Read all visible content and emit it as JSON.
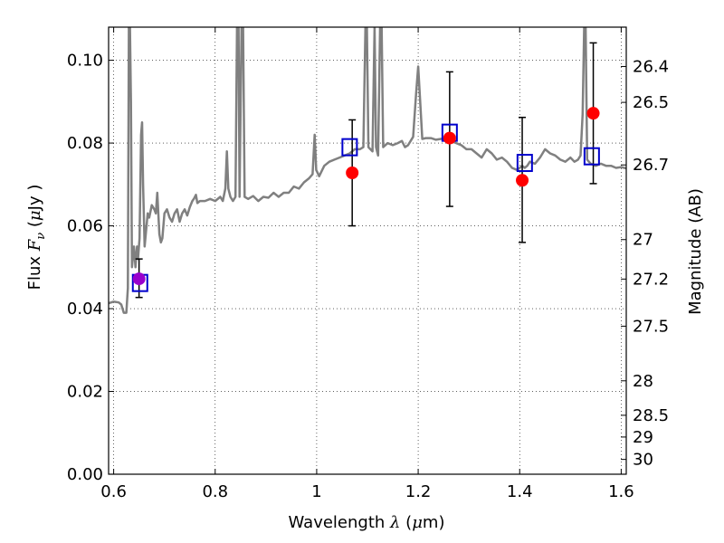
{
  "chart_data": {
    "type": "scatter",
    "xlabel_text": "Wavelength",
    "xlabel_symbol": "λ",
    "xlabel_unit_open": " (",
    "xlabel_unit_mu": "μ",
    "xlabel_unit_rest": "m)",
    "ylabel_text": "Flux",
    "ylabel_symbol": "F",
    "ylabel_subscript": "ν",
    "ylabel_unit_open": " (",
    "ylabel_unit_mu": "μ",
    "ylabel_unit_rest": "Jy )",
    "y2label": "Magnitude (AB)",
    "xlim": [
      0.59,
      1.61
    ],
    "ylim": [
      0.0,
      0.108
    ],
    "x_ticks": [
      0.6,
      0.8,
      1.0,
      1.2,
      1.4,
      1.6
    ],
    "x_tick_labels": [
      "0.6",
      "0.8",
      "1",
      "1.2",
      "1.4",
      "1.6"
    ],
    "y_ticks": [
      0.0,
      0.02,
      0.04,
      0.06,
      0.08,
      0.1
    ],
    "y_tick_labels": [
      "0.00",
      "0.02",
      "0.04",
      "0.06",
      "0.08",
      "0.10"
    ],
    "y2_ticks": [
      26.4,
      26.5,
      26.7,
      27.0,
      27.2,
      27.5,
      28.0,
      28.5,
      29.0,
      30.0
    ],
    "y2_tick_labels": [
      "26.4",
      "26.5",
      "26.7",
      "27",
      "27.2",
      "27.5",
      "28",
      "28.5",
      "29",
      "30"
    ],
    "grid": true,
    "colors": {
      "model_spectrum": "#808080",
      "model_photometry": "#0000cc",
      "observed": "#ff0000",
      "highlight": "#9900cc",
      "errorbar": "#000000"
    },
    "series": [
      {
        "kind": "line",
        "points": [
          [
            0.59,
            0.0413
          ],
          [
            0.6,
            0.0417
          ],
          [
            0.61,
            0.0415
          ],
          [
            0.615,
            0.041
          ],
          [
            0.62,
            0.039
          ],
          [
            0.625,
            0.039
          ],
          [
            0.628,
            0.045
          ],
          [
            0.63,
            0.108
          ],
          [
            0.632,
            0.108
          ],
          [
            0.634,
            0.09
          ],
          [
            0.636,
            0.05
          ],
          [
            0.64,
            0.055
          ],
          [
            0.643,
            0.05
          ],
          [
            0.646,
            0.055
          ],
          [
            0.648,
            0.052
          ],
          [
            0.651,
            0.057
          ],
          [
            0.654,
            0.082
          ],
          [
            0.656,
            0.085
          ],
          [
            0.658,
            0.07
          ],
          [
            0.661,
            0.055
          ],
          [
            0.664,
            0.059
          ],
          [
            0.667,
            0.063
          ],
          [
            0.67,
            0.062
          ],
          [
            0.675,
            0.065
          ],
          [
            0.68,
            0.064
          ],
          [
            0.683,
            0.063
          ],
          [
            0.686,
            0.068
          ],
          [
            0.69,
            0.058
          ],
          [
            0.693,
            0.056
          ],
          [
            0.696,
            0.057
          ],
          [
            0.7,
            0.063
          ],
          [
            0.705,
            0.064
          ],
          [
            0.71,
            0.062
          ],
          [
            0.715,
            0.061
          ],
          [
            0.72,
            0.063
          ],
          [
            0.725,
            0.064
          ],
          [
            0.73,
            0.061
          ],
          [
            0.735,
            0.063
          ],
          [
            0.74,
            0.064
          ],
          [
            0.745,
            0.0625
          ],
          [
            0.75,
            0.0645
          ],
          [
            0.755,
            0.066
          ],
          [
            0.758,
            0.0665
          ],
          [
            0.762,
            0.0675
          ],
          [
            0.765,
            0.0655
          ],
          [
            0.77,
            0.066
          ],
          [
            0.78,
            0.066
          ],
          [
            0.79,
            0.0665
          ],
          [
            0.8,
            0.066
          ],
          [
            0.81,
            0.067
          ],
          [
            0.815,
            0.066
          ],
          [
            0.82,
            0.069
          ],
          [
            0.823,
            0.078
          ],
          [
            0.826,
            0.069
          ],
          [
            0.83,
            0.067
          ],
          [
            0.835,
            0.066
          ],
          [
            0.84,
            0.067
          ],
          [
            0.843,
            0.108
          ],
          [
            0.846,
            0.108
          ],
          [
            0.848,
            0.067
          ],
          [
            0.852,
            0.108
          ],
          [
            0.855,
            0.108
          ],
          [
            0.858,
            0.067
          ],
          [
            0.865,
            0.0665
          ],
          [
            0.875,
            0.0672
          ],
          [
            0.885,
            0.066
          ],
          [
            0.895,
            0.067
          ],
          [
            0.905,
            0.0668
          ],
          [
            0.915,
            0.068
          ],
          [
            0.925,
            0.067
          ],
          [
            0.935,
            0.068
          ],
          [
            0.945,
            0.068
          ],
          [
            0.955,
            0.0695
          ],
          [
            0.965,
            0.069
          ],
          [
            0.975,
            0.0705
          ],
          [
            0.985,
            0.0715
          ],
          [
            0.992,
            0.0725
          ],
          [
            0.996,
            0.082
          ],
          [
            0.999,
            0.0735
          ],
          [
            1.005,
            0.072
          ],
          [
            1.015,
            0.0745
          ],
          [
            1.025,
            0.0755
          ],
          [
            1.035,
            0.076
          ],
          [
            1.045,
            0.0765
          ],
          [
            1.055,
            0.077
          ],
          [
            1.065,
            0.0775
          ],
          [
            1.075,
            0.0785
          ],
          [
            1.085,
            0.0785
          ],
          [
            1.092,
            0.079
          ],
          [
            1.096,
            0.108
          ],
          [
            1.099,
            0.108
          ],
          [
            1.102,
            0.079
          ],
          [
            1.11,
            0.078
          ],
          [
            1.114,
            0.108
          ],
          [
            1.117,
            0.079
          ],
          [
            1.121,
            0.077
          ],
          [
            1.125,
            0.108
          ],
          [
            1.128,
            0.108
          ],
          [
            1.131,
            0.079
          ],
          [
            1.14,
            0.08
          ],
          [
            1.15,
            0.0795
          ],
          [
            1.16,
            0.08
          ],
          [
            1.168,
            0.0805
          ],
          [
            1.174,
            0.079
          ],
          [
            1.18,
            0.0795
          ],
          [
            1.185,
            0.0805
          ],
          [
            1.19,
            0.0815
          ],
          [
            1.196,
            0.092
          ],
          [
            1.2,
            0.0985
          ],
          [
            1.204,
            0.09
          ],
          [
            1.208,
            0.081
          ],
          [
            1.215,
            0.0812
          ],
          [
            1.225,
            0.0812
          ],
          [
            1.235,
            0.0808
          ],
          [
            1.245,
            0.081
          ],
          [
            1.255,
            0.081
          ],
          [
            1.265,
            0.0805
          ],
          [
            1.275,
            0.08
          ],
          [
            1.285,
            0.0795
          ],
          [
            1.295,
            0.0785
          ],
          [
            1.305,
            0.0785
          ],
          [
            1.315,
            0.0775
          ],
          [
            1.325,
            0.0765
          ],
          [
            1.335,
            0.0785
          ],
          [
            1.345,
            0.0775
          ],
          [
            1.355,
            0.076
          ],
          [
            1.365,
            0.0765
          ],
          [
            1.375,
            0.0755
          ],
          [
            1.385,
            0.074
          ],
          [
            1.395,
            0.0735
          ],
          [
            1.405,
            0.0745
          ],
          [
            1.41,
            0.074
          ],
          [
            1.415,
            0.0745
          ],
          [
            1.42,
            0.0755
          ],
          [
            1.43,
            0.075
          ],
          [
            1.44,
            0.0765
          ],
          [
            1.45,
            0.0785
          ],
          [
            1.46,
            0.0775
          ],
          [
            1.47,
            0.077
          ],
          [
            1.48,
            0.076
          ],
          [
            1.49,
            0.0755
          ],
          [
            1.5,
            0.0765
          ],
          [
            1.508,
            0.0755
          ],
          [
            1.515,
            0.076
          ],
          [
            1.52,
            0.077
          ],
          [
            1.524,
            0.087
          ],
          [
            1.527,
            0.108
          ],
          [
            1.53,
            0.108
          ],
          [
            1.533,
            0.076
          ],
          [
            1.54,
            0.075
          ],
          [
            1.55,
            0.0745
          ],
          [
            1.56,
            0.075
          ],
          [
            1.57,
            0.0745
          ],
          [
            1.58,
            0.0745
          ],
          [
            1.59,
            0.074
          ],
          [
            1.6,
            0.0742
          ],
          [
            1.61,
            0.0739
          ]
        ]
      },
      {
        "kind": "open-square",
        "points": [
          [
            0.652,
            0.0462
          ],
          [
            1.065,
            0.079
          ],
          [
            1.262,
            0.0825
          ],
          [
            1.41,
            0.0752
          ],
          [
            1.542,
            0.0768
          ]
        ]
      },
      {
        "kind": "filled-circle",
        "points": [
          [
            1.07,
            0.0728
          ],
          [
            1.262,
            0.0812
          ],
          [
            1.405,
            0.071
          ],
          [
            1.545,
            0.0872
          ]
        ],
        "yerr": [
          [
            0.0128,
            0.0128
          ],
          [
            0.0165,
            0.016
          ],
          [
            0.015,
            0.0152
          ],
          [
            0.017,
            0.017
          ]
        ]
      },
      {
        "kind": "highlight-circle",
        "points": [
          [
            0.65,
            0.0472
          ]
        ],
        "yerr": [
          [
            0.0045,
            0.0048
          ]
        ]
      }
    ]
  }
}
